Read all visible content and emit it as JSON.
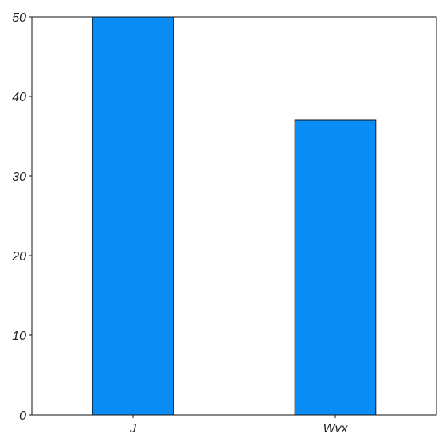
{
  "chart_data": {
    "type": "bar",
    "categories": [
      "J",
      "Wvx"
    ],
    "values": [
      50,
      37
    ],
    "ylim": [
      0,
      50
    ],
    "yticks": [
      0,
      10,
      20,
      30,
      40,
      50
    ],
    "title": "",
    "xlabel": "",
    "ylabel": "",
    "grid": false,
    "legend": "none",
    "colors": {
      "bar_fill": "#0a8cf5",
      "bar_stroke": "#111111",
      "axis": "#111111"
    }
  }
}
